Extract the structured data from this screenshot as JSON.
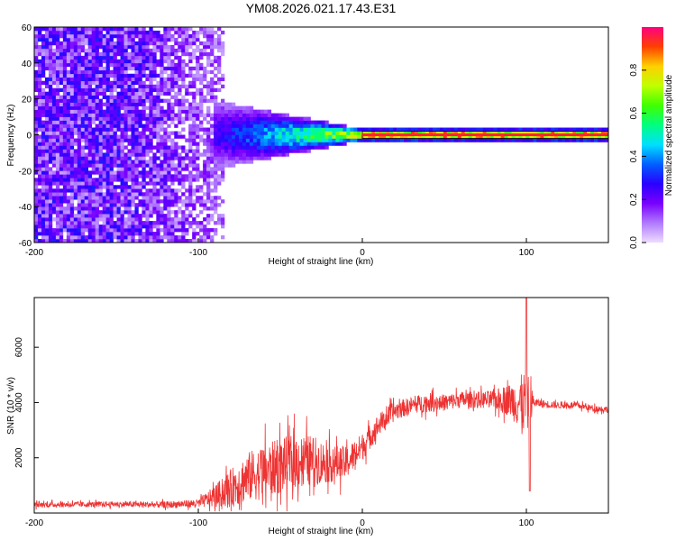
{
  "figure": {
    "title": "YM08.2026.021.17.43.E31"
  },
  "chart_data": [
    {
      "type": "heatmap",
      "name": "spectrogram",
      "xlabel": "Height of straight line (km)",
      "ylabel": "Frequency (Hz)",
      "xlim": [
        -200,
        150
      ],
      "ylim": [
        -60,
        60
      ],
      "xticks": [
        -200,
        -100,
        0,
        100
      ],
      "yticks": [
        60,
        40,
        20,
        0,
        -20,
        -40,
        -60
      ],
      "colorbar": {
        "label": "Normalized spectral amplitude",
        "range": [
          0.0,
          1.0
        ],
        "ticks": [
          0.0,
          0.2,
          0.4,
          0.6,
          0.8
        ],
        "colormap": [
          "#eedcff",
          "#b07aff",
          "#7a00ff",
          "#2a00ff",
          "#0060ff",
          "#00e0ff",
          "#00ff80",
          "#40ff00",
          "#c0ff00",
          "#ffd000",
          "#ff4000",
          "#ff0080"
        ]
      },
      "features": {
        "noise_region_x": [
          -200,
          -85
        ],
        "noise_level": 0.15,
        "carrier_frequency_hz": 0,
        "carrier_start_x": -90,
        "carrier_peak_amplitude": 0.95,
        "spread_hz_at_start": 12,
        "spread_hz_at_zero": 2
      }
    },
    {
      "type": "line",
      "name": "snr",
      "xlabel": "Height of straight line (km)",
      "ylabel": "SNR (10 * v/v)",
      "xlim": [
        -200,
        150
      ],
      "ylim": [
        0,
        7800
      ],
      "xticks": [
        -200,
        -100,
        0,
        100
      ],
      "yticks": [
        2000,
        4000,
        6000
      ],
      "color": "#ee3333",
      "x": [
        -200,
        -150,
        -120,
        -100,
        -90,
        -80,
        -70,
        -60,
        -50,
        -40,
        -30,
        -20,
        -10,
        0,
        10,
        20,
        30,
        40,
        50,
        60,
        70,
        80,
        90,
        95,
        100,
        105,
        110,
        120,
        130,
        140,
        150
      ],
      "values": [
        300,
        320,
        300,
        350,
        600,
        900,
        1300,
        1500,
        1700,
        1900,
        1900,
        1800,
        1800,
        2400,
        3200,
        3700,
        3900,
        4000,
        4000,
        4100,
        4100,
        4100,
        4100,
        4000,
        4000,
        4000,
        3950,
        3900,
        3900,
        3800,
        3750
      ],
      "jitter": [
        100,
        100,
        120,
        150,
        400,
        700,
        900,
        1000,
        1000,
        1000,
        900,
        700,
        600,
        500,
        400,
        350,
        300,
        350,
        300,
        300,
        300,
        350,
        600,
        900,
        1200,
        150,
        150,
        120,
        120,
        120,
        120
      ],
      "peak": {
        "x": 100,
        "y": 7800
      },
      "trough": {
        "x": 102,
        "y": 800
      }
    }
  ]
}
